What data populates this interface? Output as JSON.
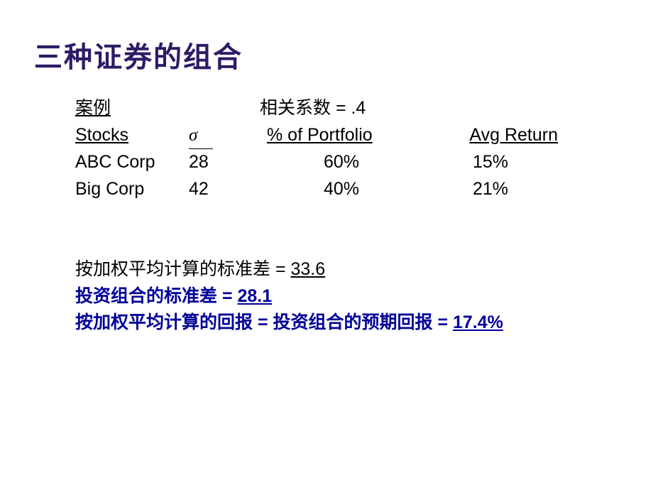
{
  "colors": {
    "title": "#2e1a66",
    "text_black": "#000000",
    "text_blue": "#000099",
    "background": "#ffffff"
  },
  "title": "三种证券的组合",
  "case_label": "案例",
  "correlation_text": "相关系数 = .4",
  "headers": {
    "stocks": "Stocks",
    "sigma": "σ",
    "pct": "% of Portfolio",
    "ret": "Avg Return"
  },
  "rows": [
    {
      "name": "ABC Corp",
      "sigma": "28",
      "pct": "60%",
      "ret": "15%"
    },
    {
      "name": "Big Corp",
      "sigma": "42",
      "pct": "40%",
      "ret": "21%"
    }
  ],
  "wavg_sd_label": "按加权平均计算的标准差 = ",
  "wavg_sd_value": "33.6",
  "port_sd_label": "投资组合的标准差 = ",
  "port_sd_value": "28.1",
  "wavg_ret_label": "按加权平均计算的回报 = 投资组合的预期回报 = ",
  "wavg_ret_value": "17.4%"
}
